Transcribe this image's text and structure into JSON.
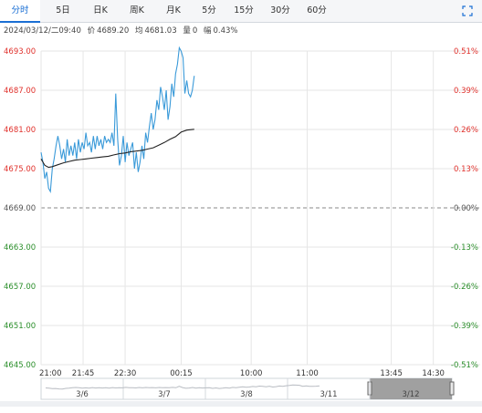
{
  "tabs": [
    {
      "label": "分时",
      "active": true
    },
    {
      "label": "5日",
      "active": false
    },
    {
      "label": "日K",
      "active": false
    },
    {
      "label": "周K",
      "active": false
    },
    {
      "label": "月K",
      "active": false
    },
    {
      "label": "5分",
      "active": false
    },
    {
      "label": "15分",
      "active": false
    },
    {
      "label": "30分",
      "active": false
    },
    {
      "label": "60分",
      "active": false
    }
  ],
  "info": {
    "datetime": "2024/03/12/二09:40",
    "price_label": "价",
    "price": "4689.20",
    "avg_label": "均",
    "avg": "4681.03",
    "volume_label": "量",
    "volume": "0",
    "change_label": "幅",
    "change": "0.43%"
  },
  "colors": {
    "up": "#e0312c",
    "down": "#2a8e2a",
    "base": "#555555",
    "price_line": "#3a9ad9",
    "avg_line": "#222222",
    "grid": "#e6e6e6",
    "accent": "#1a6fd4"
  },
  "chart_data": {
    "type": "line",
    "base_price": 4669.0,
    "ylim": [
      4645,
      4693
    ],
    "y_ticks": [
      "4693.00",
      "4687.00",
      "4681.00",
      "4675.00",
      "4669.00",
      "4663.00",
      "4657.00",
      "4651.00",
      "4645.00"
    ],
    "pct_ticks": [
      "0.51%",
      "0.39%",
      "0.26%",
      "0.13%",
      "0.00%",
      "-0.13%",
      "-0.26%",
      "-0.39%",
      "-0.51%"
    ],
    "x_ticks": [
      "21:00",
      "21:45",
      "22:30",
      "00:15",
      "10:00",
      "11:00",
      "13:45",
      "14:30"
    ],
    "x_tick_minutes": [
      0,
      45,
      90,
      150,
      225,
      285,
      375,
      420
    ],
    "x_range_minutes": [
      0,
      435
    ],
    "series": [
      {
        "x": [
          0,
          2,
          4,
          6,
          8,
          10,
          12,
          14,
          16,
          18,
          20,
          22,
          24,
          26,
          28,
          30,
          32,
          34,
          36,
          38,
          40,
          42,
          44,
          46,
          48,
          50,
          52,
          54,
          56,
          58,
          60,
          62,
          64,
          66,
          68,
          70,
          72,
          74,
          76,
          78,
          80,
          82,
          84,
          86,
          88,
          90,
          92,
          94,
          96,
          98,
          100,
          102,
          104,
          106,
          108,
          110,
          112,
          114,
          116,
          118,
          120,
          122,
          124,
          126,
          128,
          130,
          132,
          134,
          136,
          138,
          140,
          142,
          144,
          146,
          148,
          150,
          152,
          154,
          156,
          158,
          160,
          162,
          164
        ],
        "values": [
          4677.5,
          4676.0,
          4673.5,
          4674.5,
          4672.0,
          4671.5,
          4675.0,
          4676.5,
          4678.5,
          4680.0,
          4678.5,
          4676.5,
          4678.0,
          4676.0,
          4679.5,
          4677.0,
          4678.5,
          4677.0,
          4679.0,
          4676.5,
          4679.5,
          4677.5,
          4679.0,
          4678.0,
          4680.5,
          4678.5,
          4679.0,
          4677.5,
          4680.0,
          4678.0,
          4680.0,
          4678.5,
          4679.5,
          4678.0,
          4680.0,
          4679.0,
          4679.5,
          4679.0,
          4680.5,
          4678.5,
          4686.5,
          4679.5,
          4675.5,
          4677.0,
          4680.0,
          4676.0,
          4679.0,
          4677.0,
          4678.0,
          4679.0,
          4675.0,
          4677.5,
          4674.5,
          4676.0,
          4678.5,
          4676.5,
          4680.5,
          4679.0,
          4681.5,
          4683.5,
          4681.0,
          4682.5,
          4685.5,
          4684.0,
          4687.5,
          4686.0,
          4684.0,
          4687.0,
          4682.5,
          4684.5,
          4688.0,
          4686.0,
          4689.5,
          4691.0,
          4693.5,
          4693.0,
          4692.0,
          4686.5,
          4688.5,
          4686.5,
          4686.0,
          4687.0,
          4689.2
        ]
      },
      {
        "x": [
          0,
          4,
          8,
          12,
          18,
          24,
          30,
          36,
          42,
          48,
          54,
          60,
          66,
          72,
          78,
          84,
          90,
          96,
          102,
          108,
          114,
          120,
          126,
          132,
          138,
          144,
          150,
          156,
          164
        ],
        "values": [
          4676.5,
          4675.5,
          4675.2,
          4675.3,
          4675.6,
          4675.9,
          4676.1,
          4676.3,
          4676.4,
          4676.5,
          4676.6,
          4676.7,
          4676.8,
          4676.9,
          4677.1,
          4677.3,
          4677.4,
          4677.6,
          4677.7,
          4677.8,
          4678.0,
          4678.2,
          4678.6,
          4679.0,
          4679.5,
          4679.9,
          4680.6,
          4680.9,
          4681.03
        ]
      }
    ],
    "navigator": {
      "labels": [
        "3/6",
        "3/7",
        "3/8",
        "3/11",
        "3/12"
      ],
      "selected": "3/12"
    }
  }
}
